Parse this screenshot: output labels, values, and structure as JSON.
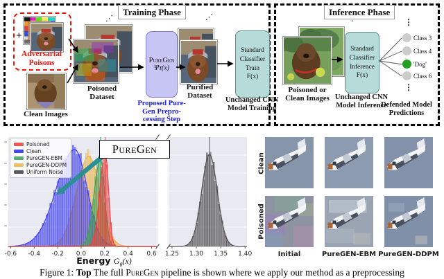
{
  "training_phase": {
    "title": "Training Phase",
    "plus": "+",
    "adversarial_poisons": "Adversarial\nPoisons",
    "clean_images": "Clean Images",
    "poisoned_dataset": "Poisoned\nDataset",
    "puregen_name": "PureGen",
    "puregen_fn": "Ψᴛ(x)",
    "puregen_step": "Proposed Pure-\nGen Prepro-\ncessing Step",
    "purified_dataset": "Purified\nDataset",
    "classifier": "Standard\nClassifier\nTrain\nF(x)",
    "classifier_caption": "Unchanged CNN\nModel Training"
  },
  "inference_phase": {
    "title": "Inference Phase",
    "input_images": "Poisoned or\nClean Images",
    "classifier": "Standard\nClassifier\nInference\nF(x)",
    "classifier_caption": "Unchanged CNN\nModel Inference",
    "ellipsis": "⋮",
    "predictions": [
      {
        "label": "Class 3",
        "color": "#cccccc"
      },
      {
        "label": "Class 4",
        "color": "#cccccc"
      },
      {
        "label": "'Dog'",
        "color": "#21a121"
      },
      {
        "label": "Class 6",
        "color": "#cccccc"
      }
    ],
    "predictions_caption": "Defended Model\nPredictions"
  },
  "colors": {
    "puregen_box": "#c7c5f3",
    "classifier_box": "#b6dbd8",
    "poison_accent": "#e8150d",
    "step_text": "#2020dd"
  },
  "chart_data": {
    "type": "histogram",
    "title": "PureGen",
    "xlabel": {
      "word": "Energy",
      "g": "G",
      "sub": "θ",
      "tail": "(x)"
    },
    "ylabel": "",
    "grid": true,
    "axis_break": true,
    "legend_position": "upper left",
    "legend": [
      {
        "label": "Poisoned",
        "color": "#ee5555"
      },
      {
        "label": "Clean",
        "color": "#4747ee"
      },
      {
        "label": "PureGEN-EBM",
        "color": "#55ae70"
      },
      {
        "label": "PureGEN-DDPM",
        "color": "#f0c060"
      },
      {
        "label": "Uniform Noise",
        "color": "#5a5a5a"
      }
    ],
    "panels": [
      {
        "xlim": [
          -0.62,
          0.65
        ],
        "bin_width": 0.016,
        "xticks": [
          {
            "v": -0.6,
            "label": "-0.6"
          },
          {
            "v": -0.4,
            "label": "-0.4"
          },
          {
            "v": -0.2,
            "label": "-0.2"
          },
          {
            "v": 0.0,
            "label": "0.0"
          },
          {
            "v": 0.2,
            "label": "0.2"
          },
          {
            "v": 0.4,
            "label": "0.4"
          },
          {
            "v": 0.6,
            "label": "0.6"
          }
        ],
        "series": [
          {
            "name": "PureGEN-DDPM",
            "color": "#eab54e",
            "mean": 0.065,
            "std_left": 0.105,
            "std_right": 0.095,
            "peak": 0.93
          },
          {
            "name": "Clean",
            "color": "#3d3df0",
            "mean": -0.055,
            "std_left": 0.155,
            "std_right": 0.105,
            "peak": 1.0
          },
          {
            "name": "PureGEN-EBM",
            "color": "#3f9e57",
            "mean": 0.165,
            "std_left": 0.055,
            "std_right": 0.035,
            "peak": 0.9,
            "mean_line": true
          },
          {
            "name": "Poisoned",
            "color": "#ee4040",
            "mean": 0.205,
            "std_left": 0.045,
            "std_right": 0.028,
            "peak": 0.97,
            "mean_line": true
          }
        ]
      },
      {
        "xlim": [
          1.243,
          1.404
        ],
        "bin_width": 0.0035,
        "xticks": [
          {
            "v": 1.25,
            "label": "1.25"
          },
          {
            "v": 1.3,
            "label": "1.30"
          },
          {
            "v": 1.35,
            "label": "1.35"
          },
          {
            "v": 1.4,
            "label": "1.40"
          }
        ],
        "series": [
          {
            "name": "Uniform Noise",
            "color": "#4d4d4d",
            "mean": 1.327,
            "std_left": 0.016,
            "std_right": 0.016,
            "peak": 0.95,
            "mean_line": true
          }
        ]
      }
    ],
    "annotation": {
      "arrow_color": "#2d8f96",
      "arrow_meaning": "purification shifts poisoned energy toward clean"
    }
  },
  "image_grid": {
    "row_labels": [
      "Clean",
      "Poisoned"
    ],
    "col_labels": [
      "Initial",
      "PureGEN-EBM",
      "PureGEN-DDPM"
    ],
    "cells": [
      {
        "row": 0,
        "col": 0,
        "image": "plane-clean-initial"
      },
      {
        "row": 0,
        "col": 1,
        "image": "plane-clean-ebm"
      },
      {
        "row": 0,
        "col": 2,
        "image": "plane-clean-ddpm"
      },
      {
        "row": 1,
        "col": 0,
        "image": "plane-poisoned-initial"
      },
      {
        "row": 1,
        "col": 1,
        "image": "plane-poisoned-ebm"
      },
      {
        "row": 1,
        "col": 2,
        "image": "plane-poisoned-ddpm"
      }
    ]
  },
  "caption": {
    "prefix": "Figure 1: ",
    "bold": "Top",
    "t1": " The full ",
    "sc": "PureGen",
    "t2": " pipeline is shown where we apply our method as a preprocessing"
  }
}
